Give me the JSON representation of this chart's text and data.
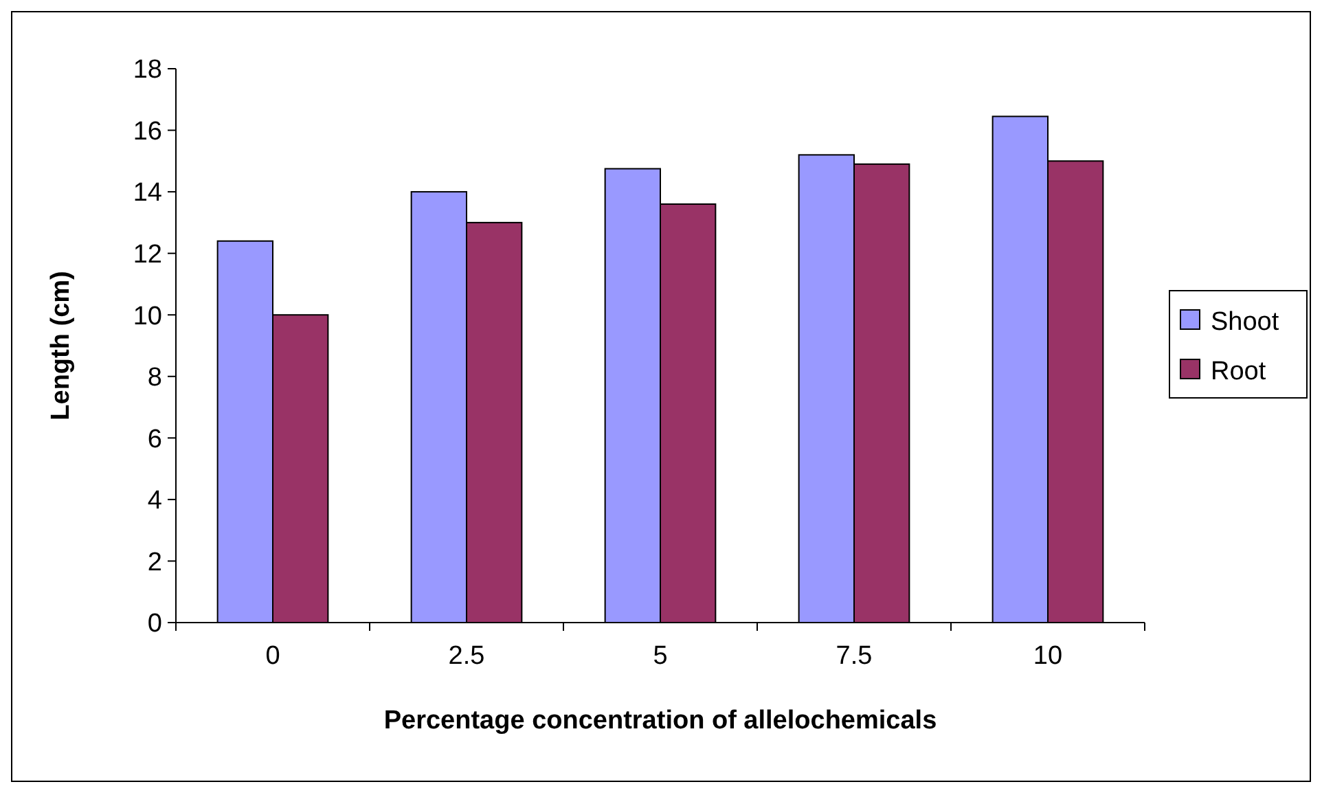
{
  "chart_data": {
    "type": "bar",
    "xlabel": "Percentage concentration of allelochemicals",
    "ylabel": "Length (cm)",
    "categories": [
      "0",
      "2.5",
      "5",
      "7.5",
      "10"
    ],
    "series": [
      {
        "name": "Shoot",
        "color": "#9999ff",
        "values": [
          12.4,
          14.0,
          14.75,
          15.2,
          16.45
        ]
      },
      {
        "name": "Root",
        "color": "#993366",
        "values": [
          10.0,
          13.0,
          13.6,
          14.9,
          15.0
        ]
      }
    ],
    "ylim": [
      0,
      18
    ],
    "yticks": [
      0,
      2,
      4,
      6,
      8,
      10,
      12,
      14,
      16,
      18
    ],
    "grid": false,
    "legend": "right"
  }
}
